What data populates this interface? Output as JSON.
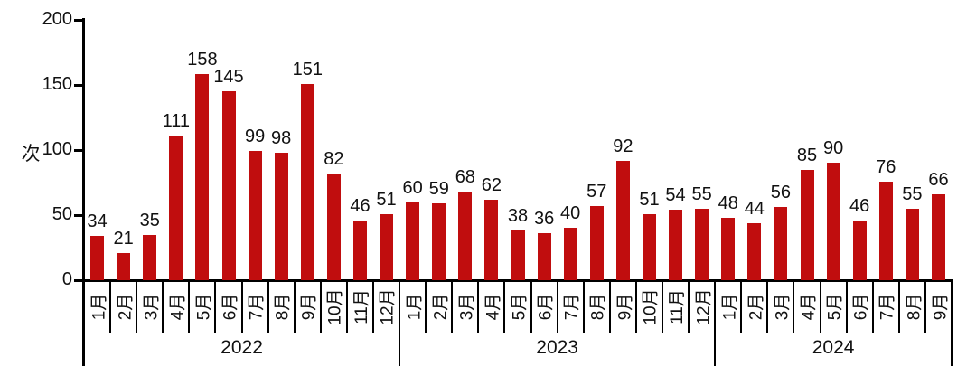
{
  "chart_data": {
    "type": "bar",
    "title": "",
    "ylabel": "次",
    "xlabel": "",
    "ylim": [
      0,
      200
    ],
    "yticks": [
      0,
      50,
      100,
      150,
      200
    ],
    "grid": false,
    "legend": "none",
    "bar_color": "#C00D0E",
    "axis_color": "#000000",
    "groups": [
      {
        "year": "2022",
        "categories": [
          "1月",
          "2月",
          "3月",
          "4月",
          "5月",
          "6月",
          "7月",
          "8月",
          "9月",
          "10月",
          "11月",
          "12月"
        ],
        "values": [
          34,
          21,
          35,
          111,
          158,
          145,
          99,
          98,
          151,
          82,
          46,
          51
        ]
      },
      {
        "year": "2023",
        "categories": [
          "1月",
          "2月",
          "3月",
          "4月",
          "5月",
          "6月",
          "7月",
          "8月",
          "9月",
          "10月",
          "11月",
          "12月"
        ],
        "values": [
          60,
          59,
          68,
          62,
          38,
          36,
          40,
          57,
          92,
          51,
          54,
          55
        ]
      },
      {
        "year": "2024",
        "categories": [
          "1月",
          "2月",
          "3月",
          "4月",
          "5月",
          "6月",
          "7月",
          "8月",
          "9月"
        ],
        "values": [
          48,
          44,
          56,
          85,
          90,
          46,
          76,
          55,
          66
        ]
      }
    ]
  }
}
